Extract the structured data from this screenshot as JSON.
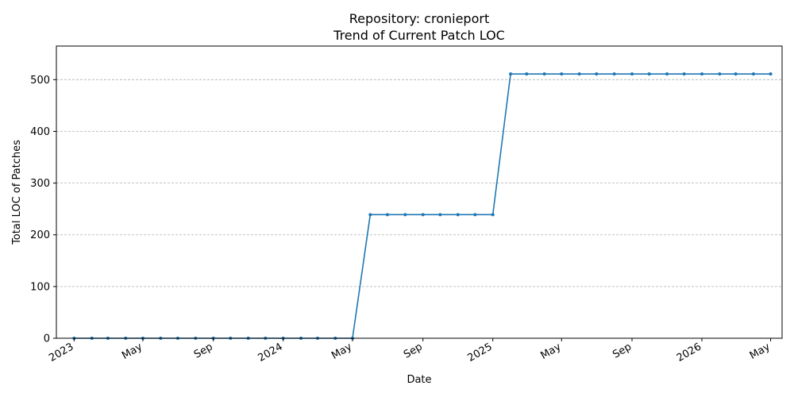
{
  "chart_data": {
    "type": "line",
    "title_line1": "Repository: cronieport",
    "title_line2": "Trend of Current Patch LOC",
    "xlabel": "Date",
    "ylabel": "Total LOC of Patches",
    "ylim": [
      0,
      565
    ],
    "yticks": [
      0,
      100,
      200,
      300,
      400,
      500
    ],
    "xlim": [
      "2022-12-01",
      "2026-05-21"
    ],
    "xticks": [
      {
        "date": "2023-01-01",
        "label": "2023"
      },
      {
        "date": "2023-05-01",
        "label": "May"
      },
      {
        "date": "2023-09-01",
        "label": "Sep"
      },
      {
        "date": "2024-01-01",
        "label": "2024"
      },
      {
        "date": "2024-05-01",
        "label": "May"
      },
      {
        "date": "2024-09-01",
        "label": "Sep"
      },
      {
        "date": "2025-01-01",
        "label": "2025"
      },
      {
        "date": "2025-05-01",
        "label": "May"
      },
      {
        "date": "2025-09-01",
        "label": "Sep"
      },
      {
        "date": "2026-01-01",
        "label": "2026"
      },
      {
        "date": "2026-05-01",
        "label": "May"
      }
    ],
    "grid": "y",
    "color": "#1f77b4",
    "x": [
      "2023-01-01",
      "2023-02-01",
      "2023-03-01",
      "2023-04-01",
      "2023-05-01",
      "2023-06-01",
      "2023-07-01",
      "2023-08-01",
      "2023-09-01",
      "2023-10-01",
      "2023-11-01",
      "2023-12-01",
      "2024-01-01",
      "2024-02-01",
      "2024-03-01",
      "2024-04-01",
      "2024-05-01",
      "2024-06-01",
      "2024-07-01",
      "2024-08-01",
      "2024-09-01",
      "2024-10-01",
      "2024-11-01",
      "2024-12-01",
      "2025-01-01",
      "2025-02-01",
      "2025-03-01",
      "2025-04-01",
      "2025-05-01",
      "2025-06-01",
      "2025-07-01",
      "2025-08-01",
      "2025-09-01",
      "2025-10-01",
      "2025-11-01",
      "2025-12-01",
      "2026-01-01",
      "2026-02-01",
      "2026-03-01",
      "2026-04-01",
      "2026-05-01"
    ],
    "y": [
      0,
      0,
      0,
      0,
      0,
      0,
      0,
      0,
      0,
      0,
      0,
      0,
      0,
      0,
      0,
      0,
      0,
      239,
      239,
      239,
      239,
      239,
      239,
      239,
      239,
      511,
      511,
      511,
      511,
      511,
      511,
      511,
      511,
      511,
      511,
      511,
      511,
      511,
      511,
      511,
      511
    ]
  }
}
